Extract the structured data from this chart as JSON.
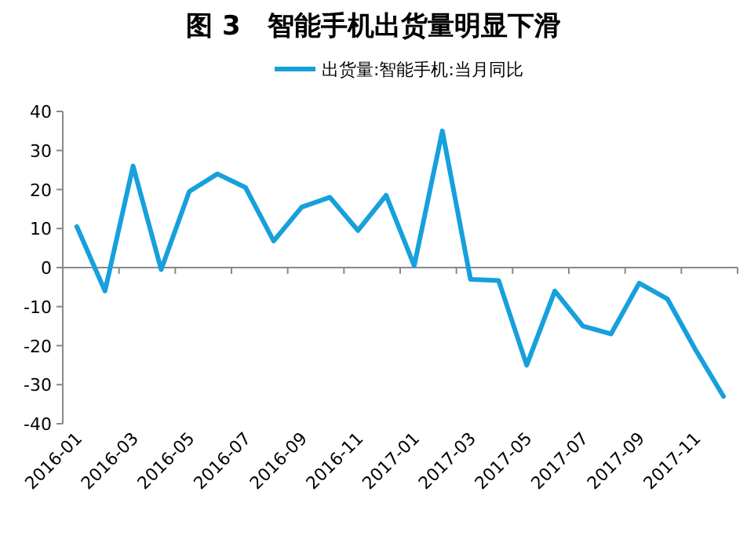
{
  "chart_data": {
    "type": "line",
    "title": "图 3　智能手机出货量明显下滑",
    "categories": [
      "2016-01",
      null,
      "2016-03",
      null,
      "2016-05",
      null,
      "2016-07",
      null,
      "2016-09",
      null,
      "2016-11",
      null,
      "2017-01",
      null,
      "2017-03",
      null,
      "2017-05",
      null,
      "2017-07",
      null,
      "2017-09",
      null,
      "2017-11",
      null
    ],
    "series": [
      {
        "name": "出货量:智能手机:当月同比",
        "color": "#16a0dc",
        "values": [
          10.5,
          -6,
          26,
          -0.5,
          19.5,
          24,
          20.5,
          6.8,
          15.5,
          18,
          9.5,
          18.5,
          0.5,
          35,
          -3,
          -3.3,
          -25,
          -6,
          -15,
          -17,
          -4,
          -8,
          -21,
          -33
        ]
      }
    ],
    "ylim": [
      -40,
      40
    ],
    "yticks": [
      -40,
      -30,
      -20,
      -10,
      0,
      10,
      20,
      30,
      40
    ],
    "legend": "top",
    "marker": "none",
    "line_style": "solid"
  }
}
